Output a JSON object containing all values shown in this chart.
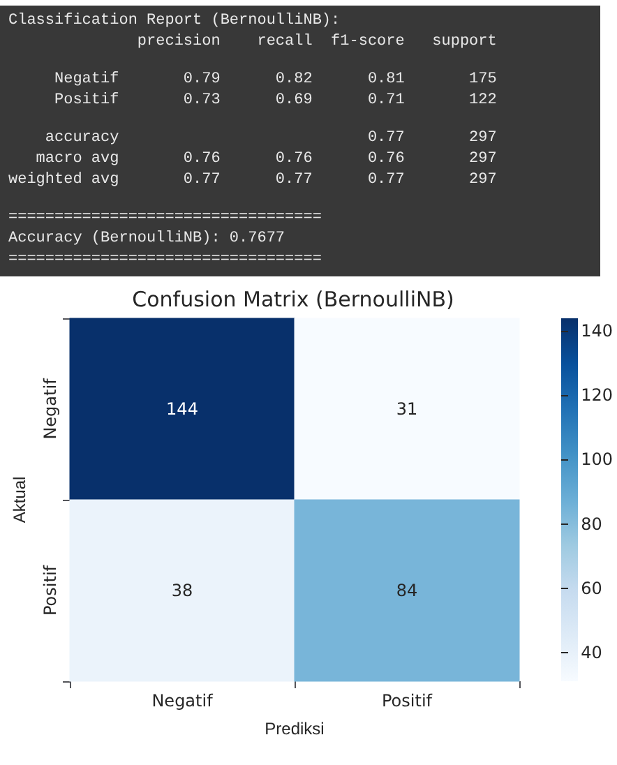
{
  "chart_data": [
    {
      "type": "other",
      "title": "Classification Report (BernoulliNB):",
      "annotations": [
        "              precision    recall  f1-score   support",
        "     Negatif       0.79      0.82      0.81       175",
        "     Positif       0.73      0.69      0.71       122",
        "    accuracy                           0.77       297",
        "   macro avg       0.76      0.76      0.76       297",
        "weighted avg       0.77      0.77      0.77       297",
        "==================================",
        "Accuracy (BernoulliNB): 0.7677",
        "=================================="
      ]
    },
    {
      "type": "heatmap",
      "title": "Confusion Matrix (BernoulliNB)",
      "xlabel": "Prediksi",
      "ylabel": "Aktual",
      "categories": [
        "Negatif",
        "Positif"
      ],
      "y_categories": [
        "Negatif",
        "Positif"
      ],
      "cells": [
        [
          144,
          31
        ],
        [
          38,
          84
        ]
      ],
      "clim": [
        31,
        144
      ],
      "cticks": [
        40,
        60,
        80,
        100,
        120,
        140
      ],
      "data_labels": true
    }
  ]
}
